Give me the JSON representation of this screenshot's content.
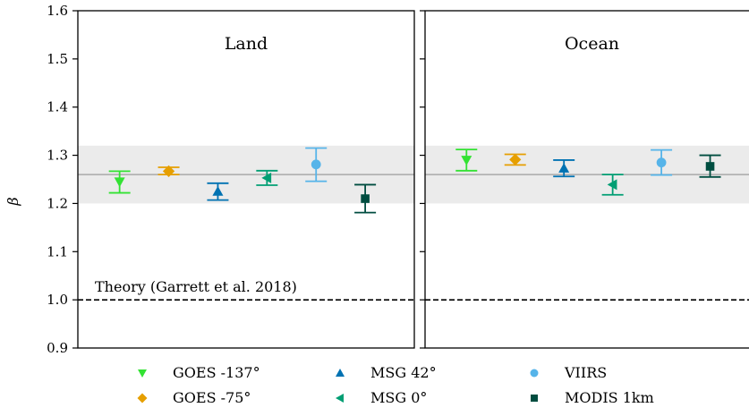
{
  "chart_data": {
    "type": "scatter",
    "ylabel": "β",
    "ylim": [
      0.9,
      1.6
    ],
    "yticks": [
      "0.9",
      "1.0",
      "1.1",
      "1.2",
      "1.3",
      "1.4",
      "1.5",
      "1.6"
    ],
    "grid": false,
    "legend_position": "bottom",
    "reference_line": {
      "value": 1.26,
      "band": [
        1.2,
        1.32
      ]
    },
    "theory_line": {
      "value": 1.0,
      "label": "Theory (Garrett et al. 2018)"
    },
    "panels": [
      {
        "title": "Land",
        "points": [
          {
            "series": "GOES -137°",
            "y": 1.245,
            "low": 1.222,
            "high": 1.267
          },
          {
            "series": "GOES -75°",
            "y": 1.267,
            "low": 1.26,
            "high": 1.275
          },
          {
            "series": "MSG 42°",
            "y": 1.225,
            "low": 1.207,
            "high": 1.242
          },
          {
            "series": "MSG 0°",
            "y": 1.253,
            "low": 1.238,
            "high": 1.268
          },
          {
            "series": "VIIRS",
            "y": 1.281,
            "low": 1.246,
            "high": 1.315
          },
          {
            "series": "MODIS 1km",
            "y": 1.21,
            "low": 1.181,
            "high": 1.239
          }
        ]
      },
      {
        "title": "Ocean",
        "points": [
          {
            "series": "GOES -137°",
            "y": 1.29,
            "low": 1.268,
            "high": 1.312
          },
          {
            "series": "GOES -75°",
            "y": 1.291,
            "low": 1.28,
            "high": 1.302
          },
          {
            "series": "MSG 42°",
            "y": 1.273,
            "low": 1.256,
            "high": 1.29
          },
          {
            "series": "MSG 0°",
            "y": 1.239,
            "low": 1.218,
            "high": 1.26
          },
          {
            "series": "VIIRS",
            "y": 1.285,
            "low": 1.259,
            "high": 1.311
          },
          {
            "series": "MODIS 1km",
            "y": 1.277,
            "low": 1.255,
            "high": 1.3
          }
        ]
      }
    ],
    "series": [
      {
        "name": "GOES -137°",
        "color": "#33e233",
        "marker": "triangle-down"
      },
      {
        "name": "GOES -75°",
        "color": "#e69f00",
        "marker": "diamond"
      },
      {
        "name": "MSG 42°",
        "color": "#0072b2",
        "marker": "triangle-up"
      },
      {
        "name": "MSG 0°",
        "color": "#009e73",
        "marker": "triangle-left"
      },
      {
        "name": "VIIRS",
        "color": "#56b4e9",
        "marker": "circle"
      },
      {
        "name": "MODIS 1km",
        "color": "#004d40",
        "marker": "square"
      }
    ]
  }
}
